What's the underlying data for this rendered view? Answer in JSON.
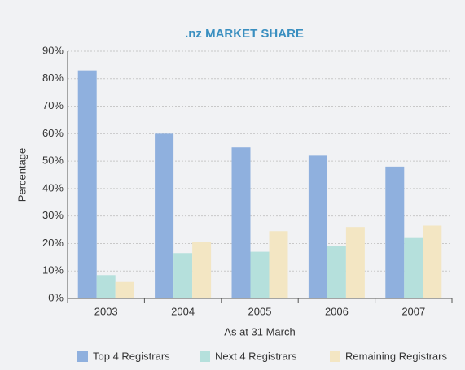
{
  "chart_data": {
    "type": "bar",
    "title": ".nz MARKET SHARE",
    "y_label": "Percentage",
    "x_label": "As at 31 March",
    "categories": [
      "2003",
      "2004",
      "2005",
      "2006",
      "2007"
    ],
    "series": [
      {
        "name": "Top 4 Registrars",
        "color": "#8fb0de",
        "values": [
          83,
          60,
          55,
          52,
          48
        ]
      },
      {
        "name": "Next 4 Registrars",
        "color": "#b5e0dc",
        "values": [
          8.5,
          16.5,
          17,
          19,
          22
        ]
      },
      {
        "name": "Remaining Registrars",
        "color": "#f3e6c3",
        "values": [
          6,
          20.5,
          24.5,
          26,
          26.5
        ]
      }
    ],
    "ylim": [
      0,
      90
    ],
    "yticks": [
      {
        "value": 0,
        "label": "0%"
      },
      {
        "value": 10,
        "label": "10%"
      },
      {
        "value": 20,
        "label": "20%"
      },
      {
        "value": 30,
        "label": "30%"
      },
      {
        "value": 40,
        "label": "40%"
      },
      {
        "value": 50,
        "label": "50%"
      },
      {
        "value": 60,
        "label": "60%"
      },
      {
        "value": 70,
        "label": "70%"
      },
      {
        "value": 80,
        "label": "80%"
      },
      {
        "value": 90,
        "label": "90%"
      }
    ],
    "grid": true,
    "legend": "bottom"
  }
}
